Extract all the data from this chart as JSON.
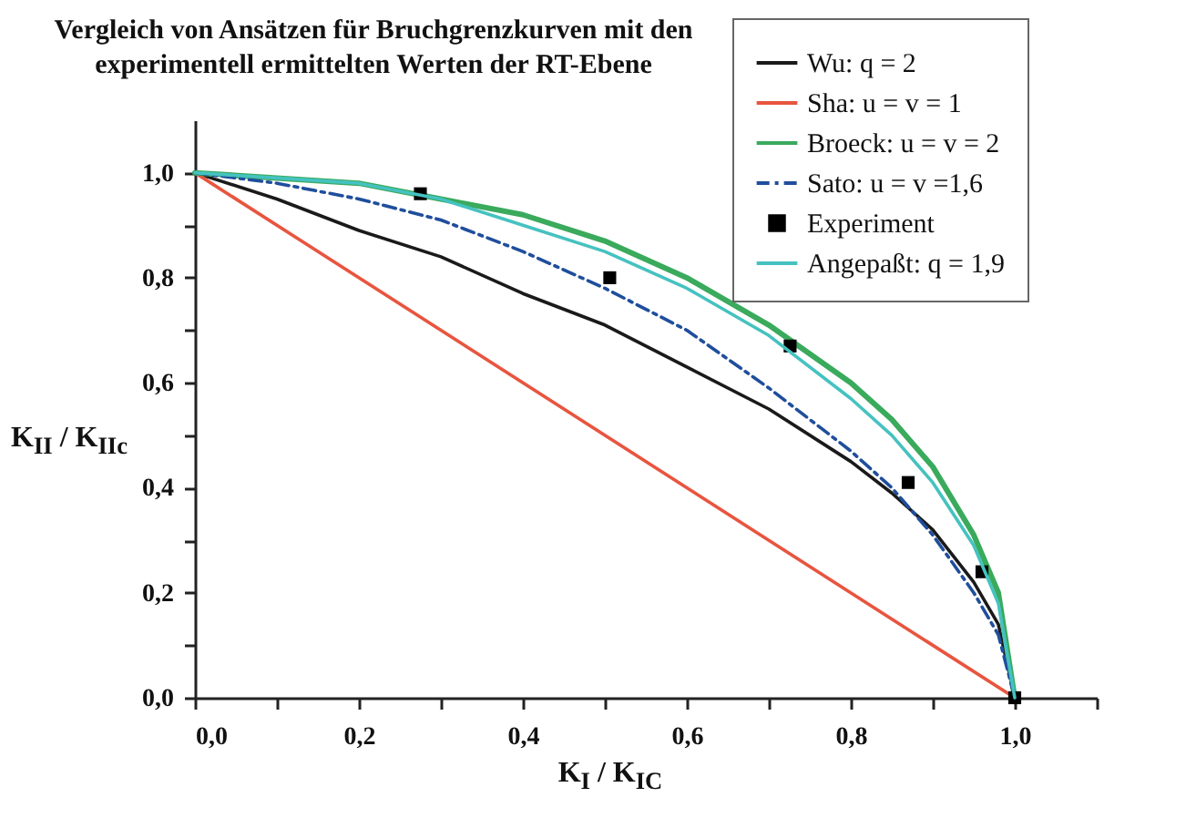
{
  "chart_data": {
    "type": "line",
    "title": "Vergleich von Ansätzen für Bruchgrenzkurven mit den experimentell ermittelten Werten der RT-Ebene",
    "xlabel": "K$_{I}$ / K$_{IC}$",
    "ylabel": "K$_{II}$ / K$_{IIc}$",
    "xlim": [
      0,
      1.1
    ],
    "ylim": [
      0,
      1.1
    ],
    "xticks": [
      {
        "value": 0,
        "label": "0,0"
      },
      {
        "value": 0.1,
        "label": null
      },
      {
        "value": 0.2,
        "label": "0,2"
      },
      {
        "value": 0.3,
        "label": null
      },
      {
        "value": 0.4,
        "label": "0,4"
      },
      {
        "value": 0.5,
        "label": null
      },
      {
        "value": 0.6,
        "label": "0,6"
      },
      {
        "value": 0.7,
        "label": null
      },
      {
        "value": 0.8,
        "label": "0,8"
      },
      {
        "value": 0.9,
        "label": null
      },
      {
        "value": 1.0,
        "label": "1,0"
      },
      {
        "value": 1.1,
        "label": null
      }
    ],
    "yticks": [
      {
        "value": 0,
        "label": "0,0"
      },
      {
        "value": 0.1,
        "label": null
      },
      {
        "value": 0.2,
        "label": "0,2"
      },
      {
        "value": 0.3,
        "label": null
      },
      {
        "value": 0.4,
        "label": "0,4"
      },
      {
        "value": 0.5,
        "label": null
      },
      {
        "value": 0.6,
        "label": "0,6"
      },
      {
        "value": 0.7,
        "label": null
      },
      {
        "value": 0.8,
        "label": "0,8"
      },
      {
        "value": 0.9,
        "label": null
      },
      {
        "value": 1.0,
        "label": "1,0"
      }
    ],
    "grid": false,
    "legend": "top right",
    "series": [
      {
        "name": "Wu: q = 2",
        "color": "#1a1a1a",
        "x": [
          0,
          0.1,
          0.2,
          0.3,
          0.4,
          0.5,
          0.6,
          0.7,
          0.8,
          0.85,
          0.9,
          0.95,
          0.98,
          1.0
        ],
        "values": [
          1.0,
          0.95,
          0.89,
          0.84,
          0.77,
          0.71,
          0.63,
          0.55,
          0.45,
          0.39,
          0.32,
          0.22,
          0.14,
          0.0
        ]
      },
      {
        "name": "Sha: u = v = 1",
        "color": "#e8553f",
        "x": [
          0,
          1.0
        ],
        "values": [
          1.0,
          0.0
        ]
      },
      {
        "name": "Broeck: u = v = 2",
        "color": "#3aaa5c",
        "x": [
          0,
          0.1,
          0.2,
          0.3,
          0.4,
          0.5,
          0.6,
          0.7,
          0.8,
          0.85,
          0.9,
          0.95,
          0.98,
          1.0
        ],
        "values": [
          1.0,
          0.99,
          0.98,
          0.95,
          0.92,
          0.87,
          0.8,
          0.71,
          0.6,
          0.53,
          0.44,
          0.31,
          0.2,
          0.0
        ]
      },
      {
        "name": "Sato: u = v =1,6",
        "color": "#1f4e9c",
        "line_style": "dashed",
        "x": [
          0,
          0.1,
          0.2,
          0.3,
          0.4,
          0.5,
          0.6,
          0.7,
          0.8,
          0.85,
          0.9,
          0.95,
          0.98,
          1.0
        ],
        "values": [
          1.0,
          0.98,
          0.95,
          0.91,
          0.85,
          0.78,
          0.7,
          0.59,
          0.47,
          0.4,
          0.31,
          0.2,
          0.12,
          0.0
        ]
      },
      {
        "name": "Experiment",
        "type": "scatter",
        "marker": "square",
        "color": "#000000",
        "x": [
          0.275,
          0.506,
          0.726,
          0.87,
          0.96,
          1.0
        ],
        "values": [
          0.96,
          0.8,
          0.67,
          0.41,
          0.24,
          0.0
        ]
      },
      {
        "name": "Angepaßt: q = 1,9",
        "color": "#45c2c0",
        "x": [
          0,
          0.1,
          0.2,
          0.3,
          0.4,
          0.5,
          0.6,
          0.7,
          0.8,
          0.85,
          0.9,
          0.95,
          0.98,
          1.0
        ],
        "values": [
          1.0,
          0.99,
          0.98,
          0.95,
          0.9,
          0.85,
          0.78,
          0.69,
          0.57,
          0.5,
          0.41,
          0.29,
          0.18,
          0.0
        ]
      }
    ]
  }
}
